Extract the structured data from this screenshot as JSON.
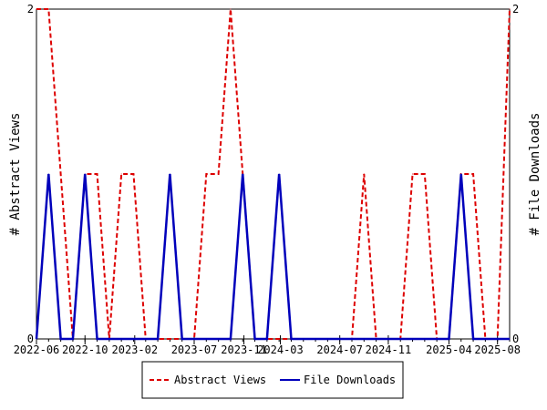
{
  "chart_data": {
    "type": "line",
    "title": "",
    "xlabel": "",
    "ylabel": "# Abstract Views",
    "y2label": "# File Downloads",
    "xlim": [
      0,
      39
    ],
    "ylim": [
      0,
      2
    ],
    "y2lim": [
      0,
      2
    ],
    "yticks": [
      "0",
      "2"
    ],
    "y2ticks": [
      "0",
      "2"
    ],
    "xticks": [
      {
        "label": "2022-06",
        "x": 0
      },
      {
        "label": "2022-10",
        "x": 4
      },
      {
        "label": "2023-02",
        "x": 8.1
      },
      {
        "label": "2023-07",
        "x": 13
      },
      {
        "label": "2023-11",
        "x": 17.1
      },
      {
        "label": "2024-03",
        "x": 20.1
      },
      {
        "label": "2024-07",
        "x": 25
      },
      {
        "label": "2024-11",
        "x": 29
      },
      {
        "label": "2025-04",
        "x": 34
      },
      {
        "label": "2025-08",
        "x": 38
      }
    ],
    "legend_position": "bottom",
    "series": [
      {
        "name": "Abstract Views",
        "color": "#dd0000",
        "style": "dashed",
        "axis": "left",
        "x": [
          0,
          1,
          2,
          3,
          4,
          5,
          6,
          7,
          8,
          9,
          10,
          11,
          12,
          13,
          14,
          15,
          16,
          17,
          18,
          19,
          20,
          21,
          22,
          23,
          24,
          25,
          26,
          27,
          28,
          29,
          30,
          31,
          32,
          33,
          34,
          35,
          36,
          37,
          38,
          39
        ],
        "values": [
          2,
          2,
          1,
          0,
          1,
          1,
          0,
          1,
          1,
          0,
          0,
          0,
          0,
          0,
          1,
          1,
          2,
          1,
          0,
          0,
          0,
          0,
          0,
          0,
          0,
          0,
          0,
          1,
          0,
          0,
          0,
          1,
          1,
          0,
          0,
          1,
          1,
          0,
          0,
          2
        ]
      },
      {
        "name": "File Downloads",
        "color": "#0000bb",
        "style": "solid",
        "axis": "right",
        "x": [
          0,
          1,
          2,
          3,
          4,
          5,
          6,
          7,
          8,
          9,
          10,
          11,
          12,
          13,
          14,
          15,
          16,
          17,
          18,
          19,
          20,
          21,
          22,
          23,
          24,
          25,
          26,
          27,
          28,
          29,
          30,
          31,
          32,
          33,
          34,
          35,
          36,
          37,
          38,
          39
        ],
        "values": [
          0,
          1,
          0,
          0,
          1,
          0,
          0,
          0,
          0,
          0,
          0,
          1,
          0,
          0,
          0,
          0,
          0,
          1,
          0,
          0,
          1,
          0,
          0,
          0,
          0,
          0,
          0,
          0,
          0,
          0,
          0,
          0,
          0,
          0,
          0,
          1,
          0,
          0,
          0,
          0
        ]
      }
    ]
  }
}
